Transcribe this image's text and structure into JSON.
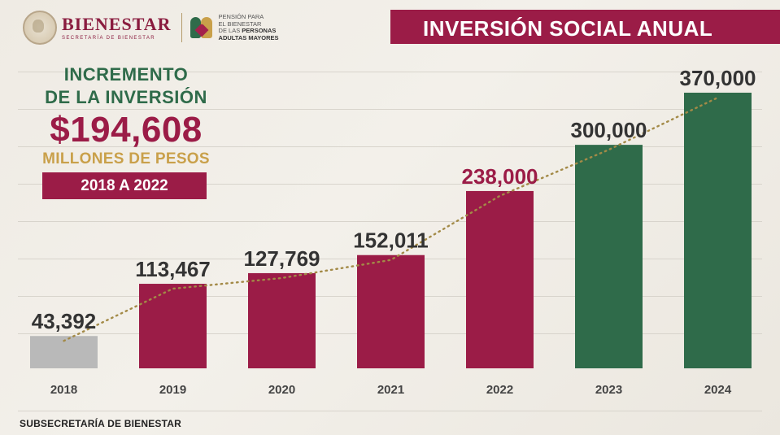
{
  "header": {
    "brand_name": "BIENESTAR",
    "brand_sub": "SECRETARÍA DE BIENESTAR",
    "program_line1": "PENSIÓN PARA",
    "program_line2": "EL BIENESTAR",
    "program_line3_prefix": "DE LAS ",
    "program_line3_bold": "PERSONAS",
    "program_line4": "ADULTAS MAYORES"
  },
  "banner": {
    "title": "INVERSIÓN SOCIAL ANUAL"
  },
  "headline": {
    "line1": "INCREMENTO",
    "line2": "DE LA INVERSIÓN",
    "amount": "$194,608",
    "units": "MILLONES DE PESOS",
    "period": "2018 A 2022"
  },
  "footer": {
    "source": "SUBSECRETARÍA DE BIENESTAR"
  },
  "colors": {
    "maroon": "#9b1c47",
    "green": "#2f6b4a",
    "gray": "#b9b9b9",
    "gold": "#c9a04a",
    "trend": "#a38a47",
    "label_dark": "#333333"
  },
  "chart_data": {
    "type": "bar",
    "title": "INVERSIÓN SOCIAL ANUAL",
    "categories": [
      "2018",
      "2019",
      "2020",
      "2021",
      "2022",
      "2023",
      "2024"
    ],
    "values": [
      43392,
      113467,
      127769,
      152011,
      238000,
      300000,
      370000
    ],
    "value_labels": [
      "43,392",
      "113,467",
      "127,769",
      "152,011",
      "238,000",
      "300,000",
      "370,000"
    ],
    "bar_colors": [
      "gray",
      "maroon",
      "maroon",
      "maroon",
      "maroon",
      "green",
      "green"
    ],
    "label_colors": [
      "label_dark",
      "label_dark",
      "label_dark",
      "label_dark",
      "maroon",
      "label_dark",
      "label_dark"
    ],
    "trendline": "dotted",
    "ylim": [
      0,
      370000
    ],
    "grid": true,
    "legend": "none"
  }
}
